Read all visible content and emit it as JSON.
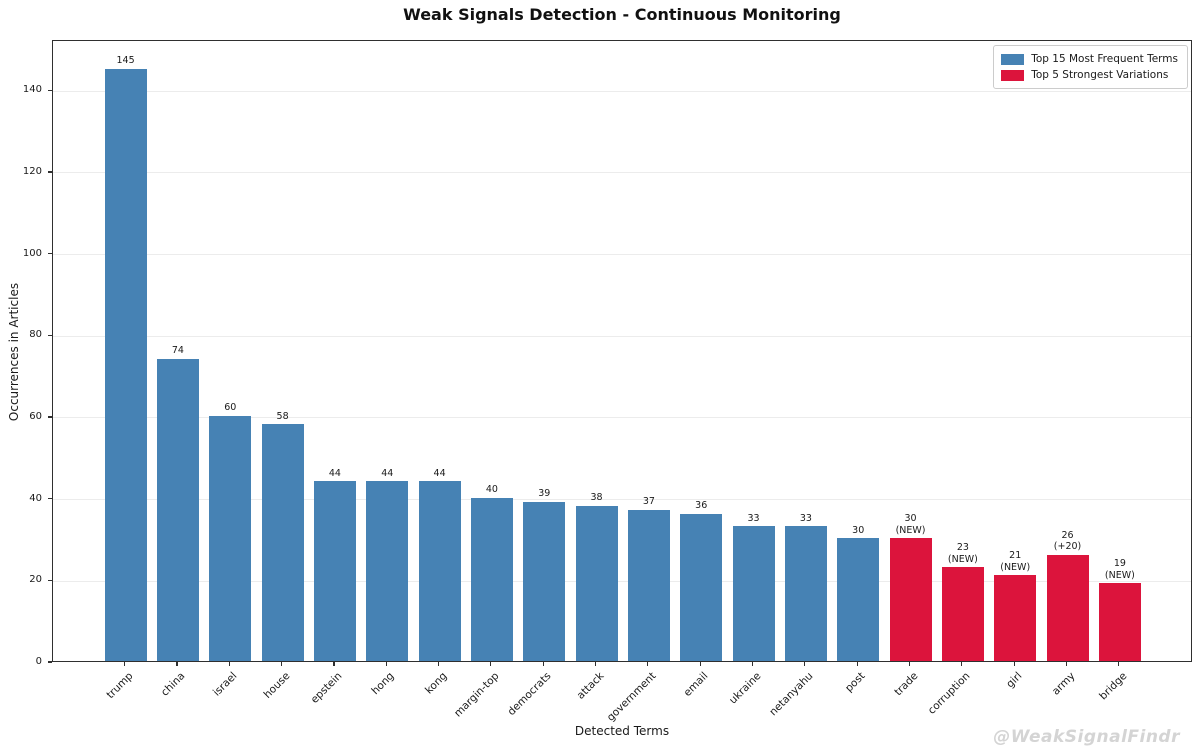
{
  "chart_data": {
    "type": "bar",
    "title": "Weak Signals Detection - Continuous Monitoring",
    "xlabel": "Detected Terms",
    "ylabel": "Occurrences in Articles",
    "ylim": [
      0,
      152.3
    ],
    "yticks": [
      0,
      20,
      40,
      60,
      80,
      100,
      120,
      140
    ],
    "grid": true,
    "legend_position": "upper right",
    "colors": {
      "frequent": "#4682B4",
      "variation": "#DC143C"
    },
    "legend": [
      {
        "label": "Top 15 Most Frequent Terms",
        "group": "frequent"
      },
      {
        "label": "Top 5 Strongest Variations",
        "group": "variation"
      }
    ],
    "bars": [
      {
        "term": "trump",
        "value": 145,
        "group": "frequent",
        "annotation": ""
      },
      {
        "term": "china",
        "value": 74,
        "group": "frequent",
        "annotation": ""
      },
      {
        "term": "israel",
        "value": 60,
        "group": "frequent",
        "annotation": ""
      },
      {
        "term": "house",
        "value": 58,
        "group": "frequent",
        "annotation": ""
      },
      {
        "term": "epstein",
        "value": 44,
        "group": "frequent",
        "annotation": ""
      },
      {
        "term": "hong",
        "value": 44,
        "group": "frequent",
        "annotation": ""
      },
      {
        "term": "kong",
        "value": 44,
        "group": "frequent",
        "annotation": ""
      },
      {
        "term": "margin-top",
        "value": 40,
        "group": "frequent",
        "annotation": ""
      },
      {
        "term": "democrats",
        "value": 39,
        "group": "frequent",
        "annotation": ""
      },
      {
        "term": "attack",
        "value": 38,
        "group": "frequent",
        "annotation": ""
      },
      {
        "term": "government",
        "value": 37,
        "group": "frequent",
        "annotation": ""
      },
      {
        "term": "email",
        "value": 36,
        "group": "frequent",
        "annotation": ""
      },
      {
        "term": "ukraine",
        "value": 33,
        "group": "frequent",
        "annotation": ""
      },
      {
        "term": "netanyahu",
        "value": 33,
        "group": "frequent",
        "annotation": ""
      },
      {
        "term": "post",
        "value": 30,
        "group": "frequent",
        "annotation": ""
      },
      {
        "term": "trade",
        "value": 30,
        "group": "variation",
        "annotation": "(NEW)"
      },
      {
        "term": "corruption",
        "value": 23,
        "group": "variation",
        "annotation": "(NEW)"
      },
      {
        "term": "girl",
        "value": 21,
        "group": "variation",
        "annotation": "(NEW)"
      },
      {
        "term": "army",
        "value": 26,
        "group": "variation",
        "annotation": "(+20)"
      },
      {
        "term": "bridge",
        "value": 19,
        "group": "variation",
        "annotation": "(NEW)"
      }
    ],
    "watermark": "@WeakSignalFindr"
  }
}
